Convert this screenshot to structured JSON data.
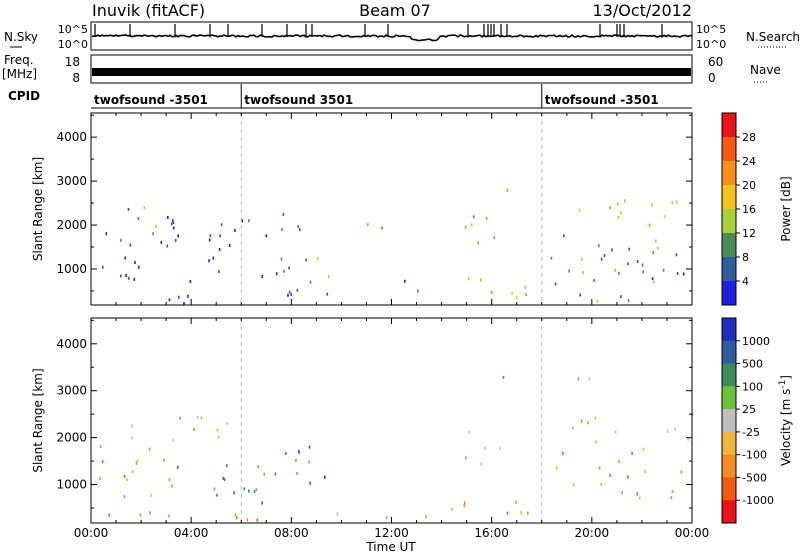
{
  "header": {
    "station": "Inuvik (fitACF)",
    "beam": "Beam 07",
    "date": "13/Oct/2012"
  },
  "noise_panel": {
    "left_label": "N.Sky",
    "left_ticks": [
      "10^5",
      "10^0"
    ],
    "right_label": "N.Search",
    "right_ticks": [
      "10^5",
      "10^0"
    ]
  },
  "freq_panel": {
    "left_label": "Freq.",
    "left_unit": "[MHz]",
    "left_ticks": [
      "18",
      "8"
    ],
    "right_label": "Nave",
    "right_ticks": [
      "60",
      "0"
    ]
  },
  "cpid_panel": {
    "label": "CPID",
    "entries": [
      {
        "name": "twofsound -3501",
        "start": "00:00"
      },
      {
        "name": "twofsound 3501",
        "start": "06:00"
      },
      {
        "name": "twofsound -3501",
        "start": "18:00"
      }
    ]
  },
  "chart_data": [
    {
      "type": "heatmap",
      "title": "Power",
      "ylabel": "Slant Range [km]",
      "xlabel": "",
      "yticks": [
        1000,
        2000,
        3000,
        4000
      ],
      "ylim": [
        180,
        4550
      ],
      "colorbar": {
        "label": "Power [dB]",
        "ticks": [
          "28",
          "24",
          "20",
          "16",
          "12",
          "8",
          "4"
        ],
        "colors": [
          "#e8141a",
          "#f25a14",
          "#f5901a",
          "#f2c31e",
          "#a9cf3c",
          "#4c8c5a",
          "#2f5c9a",
          "#1f1fe0"
        ]
      },
      "blobs": [
        {
          "t": [
            0.0,
            6.0
          ],
          "r": [
            600,
            1900
          ],
          "level": 7
        },
        {
          "t": [
            0.4,
            3.0
          ],
          "r": [
            1600,
            2450
          ],
          "level": 5
        },
        {
          "t": [
            3.0,
            6.3
          ],
          "r": [
            1500,
            2450
          ],
          "level": 6
        },
        {
          "t": [
            0.0,
            9.5
          ],
          "r": [
            200,
            450
          ],
          "level": 7
        },
        {
          "t": [
            6.0,
            8.7
          ],
          "r": [
            450,
            2300
          ],
          "level": 6
        },
        {
          "t": [
            8.7,
            9.5
          ],
          "r": [
            400,
            1800
          ],
          "level": 4
        },
        {
          "t": [
            11.0,
            12.5
          ],
          "r": [
            1700,
            2200
          ],
          "level": 2
        },
        {
          "t": [
            12.3,
            13.7
          ],
          "r": [
            200,
            800
          ],
          "level": 6
        },
        {
          "t": [
            14.0,
            17.9
          ],
          "r": [
            200,
            850
          ],
          "level": 3
        },
        {
          "t": [
            14.5,
            16.7
          ],
          "r": [
            1300,
            2200
          ],
          "level": 2
        },
        {
          "t": [
            16.2,
            16.9
          ],
          "r": [
            2700,
            3400
          ],
          "level": 3
        },
        {
          "t": [
            18.2,
            24.0
          ],
          "r": [
            500,
            1800
          ],
          "level": 5
        },
        {
          "t": [
            18.3,
            23.8
          ],
          "r": [
            1900,
            2600
          ],
          "level": 3
        },
        {
          "t": [
            21.8,
            24.0
          ],
          "r": [
            700,
            1500
          ],
          "level": 6
        },
        {
          "t": [
            18.5,
            23.5
          ],
          "r": [
            200,
            450
          ],
          "level": 5
        }
      ]
    },
    {
      "type": "heatmap",
      "title": "Velocity",
      "ylabel": "Slant Range [km]",
      "xlabel": "Time UT",
      "xticks": [
        "00:00",
        "04:00",
        "08:00",
        "12:00",
        "16:00",
        "20:00",
        "00:00"
      ],
      "yticks": [
        1000,
        2000,
        3000,
        4000
      ],
      "ylim": [
        180,
        4550
      ],
      "colorbar": {
        "label": "Velocity [m s^-1]",
        "ticks": [
          "1000",
          "500",
          "100",
          "25",
          "-25",
          "-100",
          "-500",
          "-1000"
        ],
        "colors": [
          "#1f2fb8",
          "#2f5ca0",
          "#3f8a5c",
          "#6cc23c",
          "#bfbfbf",
          "#f2b43c",
          "#f28a28",
          "#f25a14",
          "#e8141a"
        ]
      },
      "blobs": [
        {
          "t": [
            0.0,
            3.8
          ],
          "r": [
            700,
            1800
          ],
          "level": 6
        },
        {
          "t": [
            0.2,
            5.5
          ],
          "r": [
            1800,
            2500
          ],
          "level": 4
        },
        {
          "t": [
            3.0,
            7.5
          ],
          "r": [
            600,
            1500
          ],
          "level": 2
        },
        {
          "t": [
            6.0,
            8.7
          ],
          "r": [
            500,
            1900
          ],
          "level": 2
        },
        {
          "t": [
            8.7,
            9.5
          ],
          "r": [
            700,
            1500
          ],
          "level": 0
        },
        {
          "t": [
            0.0,
            9.5
          ],
          "r": [
            200,
            500
          ],
          "level": 6
        },
        {
          "t": [
            9.5,
            13.5
          ],
          "r": [
            200,
            500
          ],
          "level": 3
        },
        {
          "t": [
            13.8,
            17.8
          ],
          "r": [
            200,
            850
          ],
          "level": 6
        },
        {
          "t": [
            14.5,
            16.6
          ],
          "r": [
            1300,
            2200
          ],
          "level": 3
        },
        {
          "t": [
            16.3,
            17.0
          ],
          "r": [
            2800,
            3400
          ],
          "level": 3
        },
        {
          "t": [
            18.3,
            24.0
          ],
          "r": [
            1900,
            2600
          ],
          "level": 4
        },
        {
          "t": [
            18.5,
            23.8
          ],
          "r": [
            700,
            1800
          ],
          "level": 6
        },
        {
          "t": [
            19.0,
            20.5
          ],
          "r": [
            2800,
            3300
          ],
          "level": 4
        }
      ]
    }
  ]
}
